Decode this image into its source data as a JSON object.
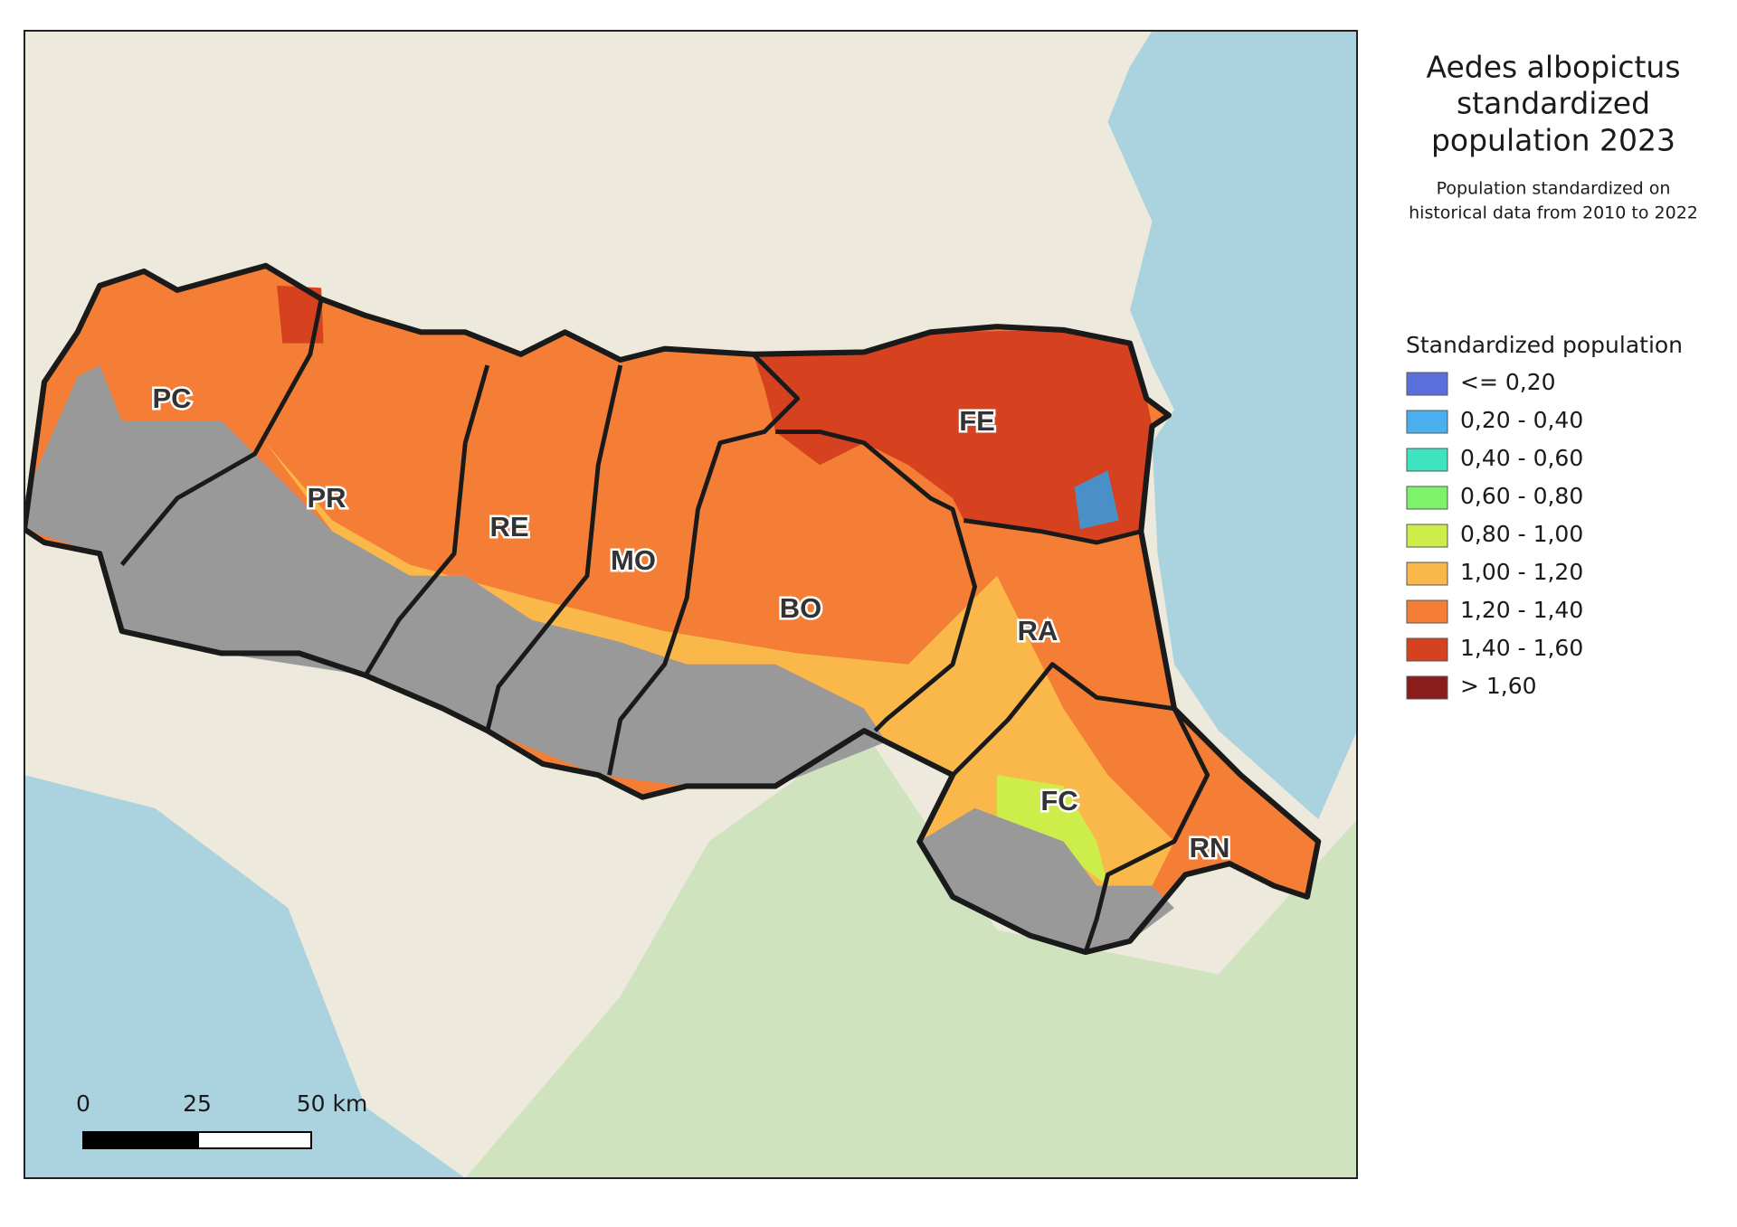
{
  "legend": {
    "title": [
      "Aedes albopictus",
      "standardized",
      "population 2023"
    ],
    "subtitle": [
      "Population standardized on",
      "historical data from 2010 to 2022"
    ],
    "heading": "Standardized population",
    "items": [
      {
        "label": "<= 0,20",
        "color": "#5a6fdc"
      },
      {
        "label": "0,20 - 0,40",
        "color": "#4aaeef"
      },
      {
        "label": "0,40 - 0,60",
        "color": "#3ee3c0"
      },
      {
        "label": "0,60 - 0,80",
        "color": "#7df26a"
      },
      {
        "label": "0,80 - 1,00",
        "color": "#cdee4a"
      },
      {
        "label": "1,00 - 1,20",
        "color": "#fbb84a"
      },
      {
        "label": "1,20 - 1,40",
        "color": "#f47e36"
      },
      {
        "label": "1,40 - 1,60",
        "color": "#d6411f"
      },
      {
        "label": "> 1,60",
        "color": "#8b1c1c"
      }
    ]
  },
  "provinces": [
    "PC",
    "PR",
    "RE",
    "MO",
    "BO",
    "FE",
    "RA",
    "FC",
    "RN"
  ],
  "scale_bar": {
    "labels": [
      "0",
      "25",
      "50 km"
    ]
  }
}
